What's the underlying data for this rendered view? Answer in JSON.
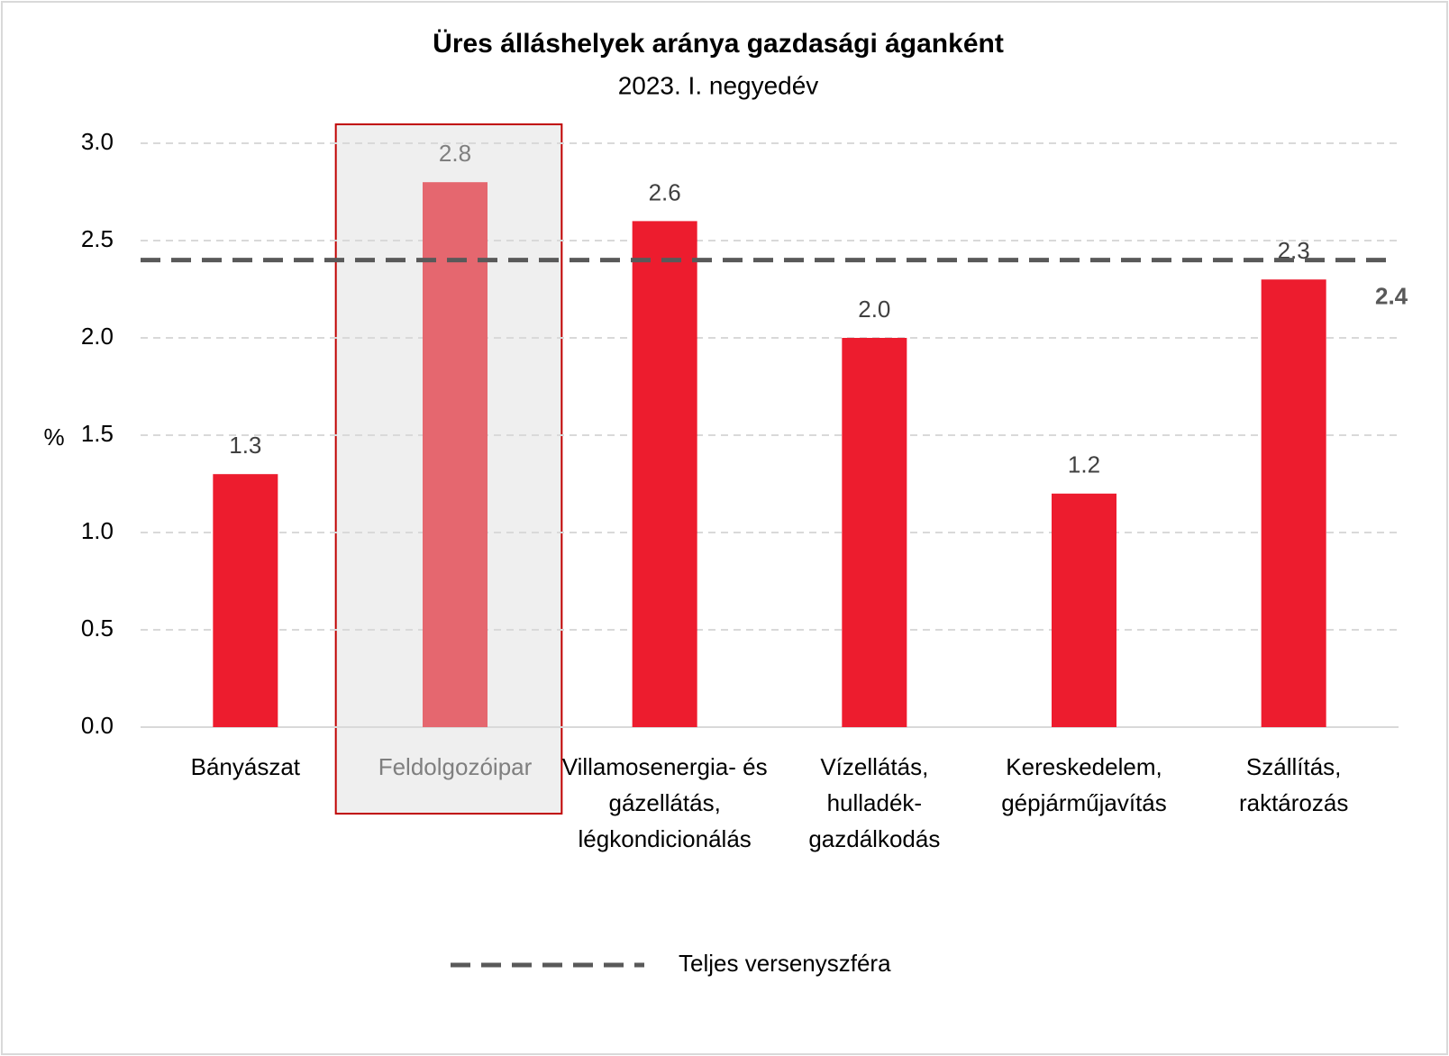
{
  "chart_data": {
    "type": "bar",
    "title": "Üres álláshelyek aránya gazdasági áganként",
    "subtitle": "2023. I. negyedév",
    "y_axis_label": "%",
    "categories": [
      "Bányászat",
      "Feldolgozóipar",
      "Villamosenergia- és gázellátás, légkondicionálás",
      "Vízellátás, hulladék-gazdálkodás",
      "Kereskedelem, gépjárműjavítás",
      "Szállítás, raktározás"
    ],
    "values": [
      1.3,
      2.8,
      2.6,
      2.0,
      1.2,
      2.3
    ],
    "value_labels": [
      "1.3",
      "2.8",
      "2.6",
      "2.0",
      "1.2",
      "2.3"
    ],
    "color": "#ed1c2e",
    "highlight": {
      "index": 1,
      "color": "#e5676f"
    },
    "reference_line": {
      "name": "Teljes versenyszféra",
      "value": 2.4,
      "color": "#595959"
    },
    "ylim": [
      0,
      3
    ],
    "yticks": [
      {
        "value": 0,
        "label": "0.0"
      },
      0.5,
      {
        "value": 1,
        "label": "1.0"
      },
      1.5,
      {
        "value": 2,
        "label": "2.0"
      },
      2.5,
      {
        "value": 3,
        "label": "3.0"
      }
    ],
    "grid": true
  }
}
